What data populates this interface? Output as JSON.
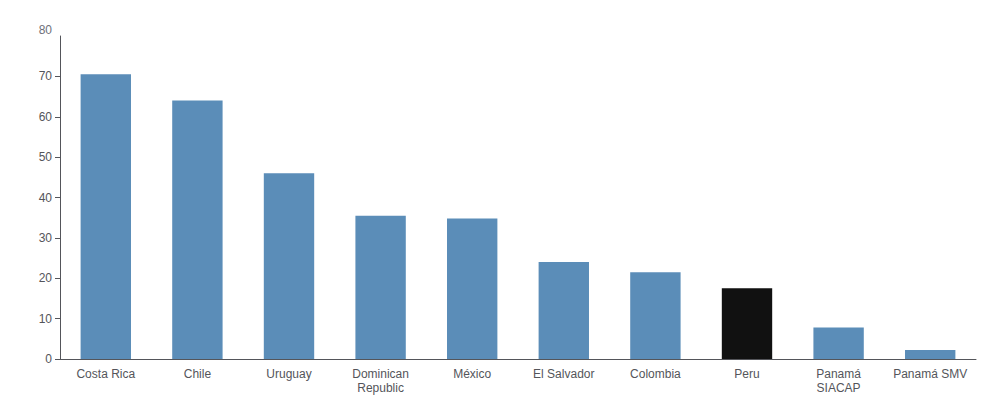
{
  "chart_data": {
    "type": "bar",
    "categories": [
      "Costa Rica",
      "Chile",
      "Uruguay",
      "Dominican\nRepublic",
      "México",
      "El Salvador",
      "Colombia",
      "Peru",
      "Panamá\nSIACAP",
      "Panamá SMV"
    ],
    "values": [
      70.5,
      64.0,
      46.0,
      35.5,
      34.8,
      24.0,
      21.5,
      17.5,
      7.8,
      2.2
    ],
    "colors": [
      "#5b8db8",
      "#5b8db8",
      "#5b8db8",
      "#5b8db8",
      "#5b8db8",
      "#5b8db8",
      "#5b8db8",
      "#111111",
      "#5b8db8",
      "#5b8db8"
    ],
    "ylim": [
      0,
      80
    ],
    "yticks": [
      0,
      10,
      20,
      30,
      40,
      50,
      60,
      70
    ],
    "annotations": [
      "80"
    ],
    "grid": false
  }
}
